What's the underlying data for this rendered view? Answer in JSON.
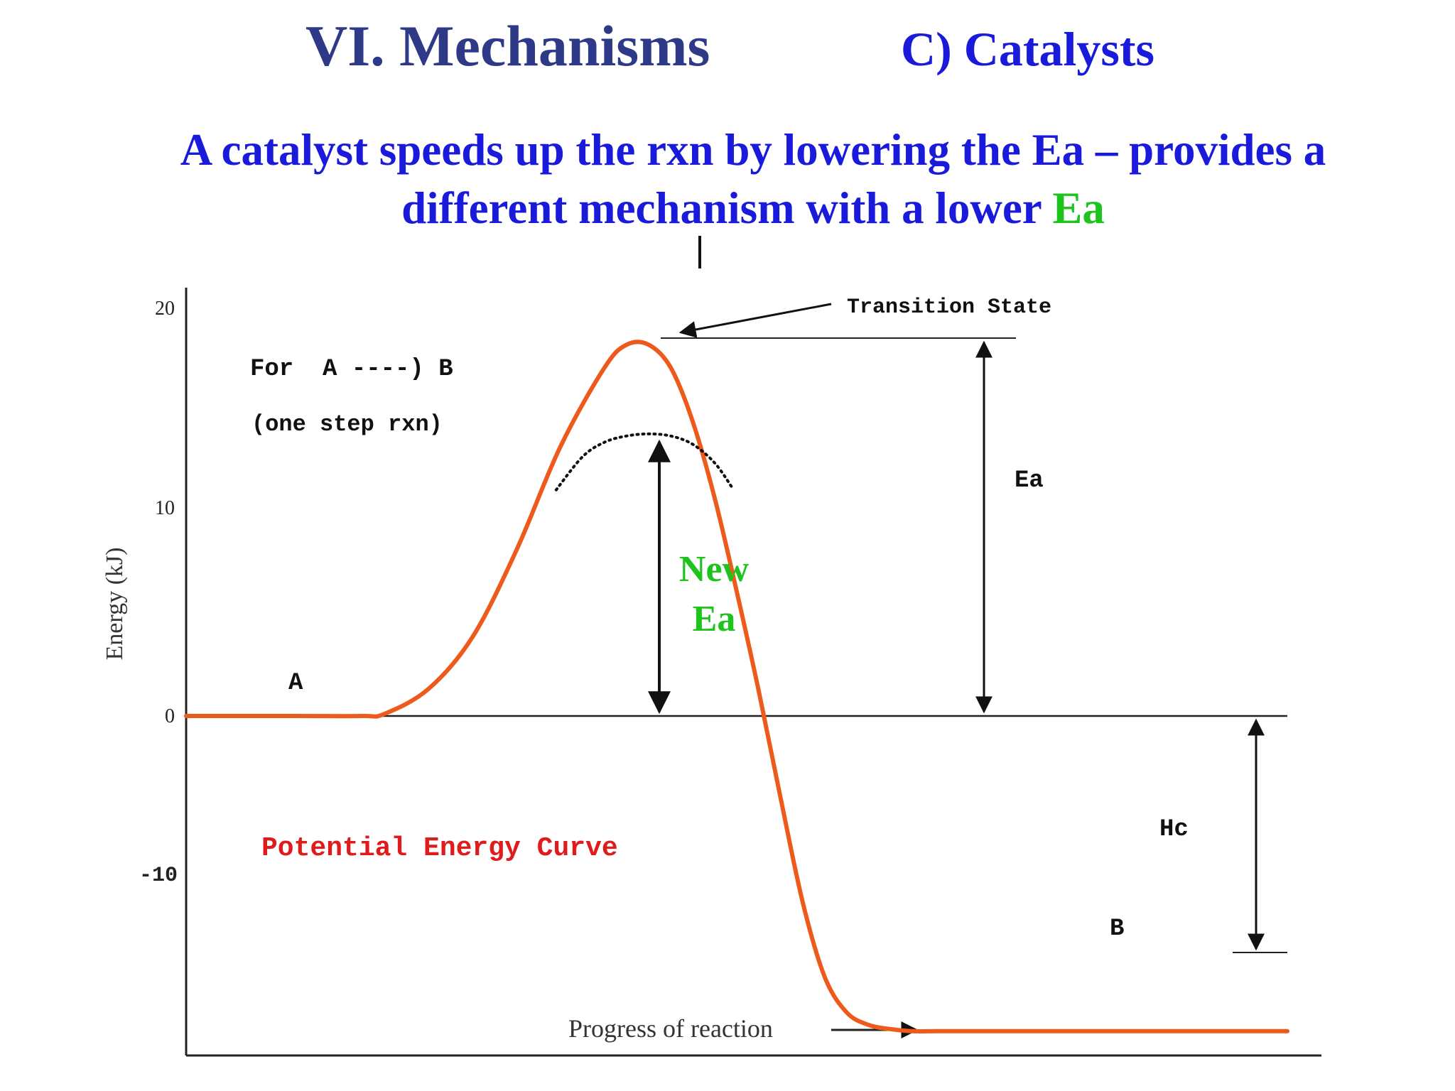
{
  "heading": {
    "title": "VI.  Mechanisms",
    "subtitle": "C) Catalysts"
  },
  "statement": {
    "line1": "A catalyst speeds up the rxn by lowering the Ea – provides a",
    "line2_prefix": "different mechanism with a lower ",
    "line2_highlight": "Ea"
  },
  "colors": {
    "heading": "#2e3a87",
    "statement": "#1a1adb",
    "highlight": "#1ec31e",
    "curve": "#ee5a1c",
    "curve_label": "#e01b1b"
  },
  "chart_data": {
    "type": "line",
    "ylabel": "Energy (kJ)",
    "xlabel": "Progress of reaction",
    "yticks": [
      20,
      10,
      0,
      -10
    ],
    "ylim": [
      -18.5,
      20.5
    ],
    "reaction_label": "For  A ----) B",
    "reaction_note": "(one step rxn)",
    "curve_label": "Potential Energy Curve",
    "series": [
      {
        "x": [
          0,
          10,
          16,
          18,
          22,
          26,
          30,
          34,
          38,
          40,
          42,
          44,
          46,
          48,
          50,
          52,
          54,
          56,
          58,
          60,
          62,
          64,
          66,
          68,
          70,
          74,
          80,
          86,
          92,
          100
        ],
        "y": [
          0,
          0,
          0,
          0.1,
          1.3,
          3.8,
          8,
          13,
          16.8,
          17.9,
          17.9,
          16.8,
          14.2,
          10.5,
          6,
          1.2,
          -4,
          -9,
          -12.6,
          -14.3,
          -14.9,
          -15.1,
          -15.2,
          -15.2,
          -15.2,
          -15.2,
          -15.2,
          -15.2,
          -15.2,
          -15.2
        ]
      },
      {
        "x": [
          33.6,
          36,
          38,
          40,
          42,
          44,
          46,
          48,
          49.6
        ],
        "y": [
          10.9,
          12.5,
          13.2,
          13.5,
          13.6,
          13.5,
          13.1,
          12.2,
          11
        ]
      }
    ],
    "annotations": {
      "transition_state": "Transition State",
      "ea": "Ea",
      "new_ea_line1": "New",
      "new_ea_line2": "Ea",
      "hc": "Hc",
      "reactant": "A",
      "product": "B"
    },
    "levels": {
      "reactant": 0,
      "transition_state": 17.9,
      "catalyzed_peak": 13.6,
      "product": -15.2
    }
  }
}
